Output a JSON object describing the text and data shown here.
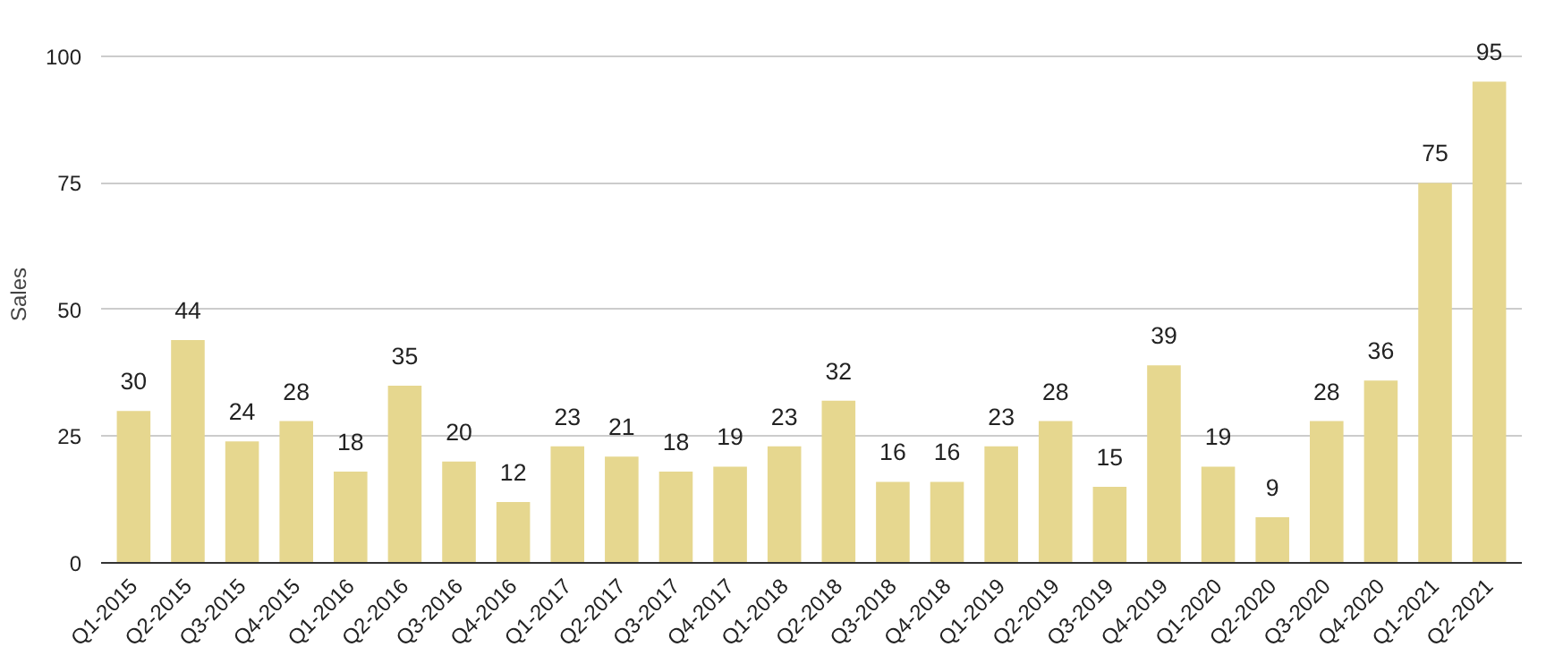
{
  "chart_data": {
    "type": "bar",
    "ylabel": "Sales",
    "categories": [
      "Q1-2015",
      "Q2-2015",
      "Q3-2015",
      "Q4-2015",
      "Q1-2016",
      "Q2-2016",
      "Q3-2016",
      "Q4-2016",
      "Q1-2017",
      "Q2-2017",
      "Q3-2017",
      "Q4-2017",
      "Q1-2018",
      "Q2-2018",
      "Q3-2018",
      "Q4-2018",
      "Q1-2019",
      "Q2-2019",
      "Q3-2019",
      "Q4-2019",
      "Q1-2020",
      "Q2-2020",
      "Q3-2020",
      "Q4-2020",
      "Q1-2021",
      "Q2-2021"
    ],
    "values": [
      30,
      44,
      24,
      28,
      18,
      35,
      20,
      12,
      23,
      21,
      18,
      19,
      23,
      32,
      16,
      16,
      23,
      28,
      15,
      39,
      19,
      9,
      28,
      36,
      75,
      95
    ],
    "color": "#e6d78f",
    "ylim": [
      0,
      100
    ],
    "yticks": [
      0,
      25,
      50,
      75,
      100
    ],
    "grid": "y",
    "data_labels": true
  }
}
